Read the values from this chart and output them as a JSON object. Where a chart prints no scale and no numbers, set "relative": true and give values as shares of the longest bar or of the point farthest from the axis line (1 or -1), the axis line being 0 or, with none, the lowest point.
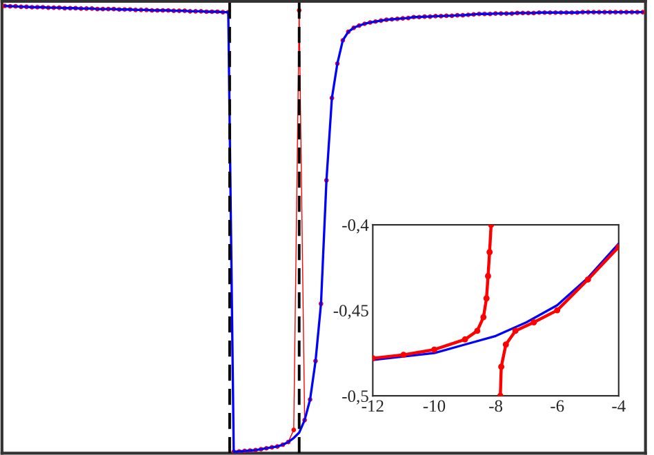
{
  "chart_data": [
    {
      "type": "line",
      "relative": true,
      "grid": false,
      "categories": [
        null,
        null,
        null,
        null,
        null,
        null,
        null,
        null,
        null,
        null,
        null,
        null,
        null,
        null,
        null,
        null,
        null,
        null,
        null,
        null,
        null,
        null,
        null,
        null,
        null,
        null,
        null,
        null,
        null,
        null,
        null,
        null,
        null,
        null,
        null,
        null,
        null,
        null,
        null,
        null,
        null,
        null,
        null,
        null,
        null,
        null,
        null,
        null,
        null,
        null,
        null,
        null,
        null,
        null,
        null,
        null,
        null,
        null,
        null,
        null,
        null,
        null,
        null,
        null,
        null,
        null,
        null,
        null,
        null,
        null,
        null,
        null,
        null,
        null,
        null,
        null,
        null,
        null,
        null,
        null,
        null,
        null,
        null,
        null,
        null,
        null,
        null,
        null,
        null,
        null,
        null,
        null,
        null,
        null,
        null,
        null,
        null,
        null,
        null,
        null,
        null,
        null,
        null,
        null,
        null,
        null,
        null,
        null,
        null,
        null,
        null,
        null,
        null,
        null,
        null,
        null,
        null,
        null
      ],
      "series": [
        {
          "color": "#0000ff",
          "values": [
            1.0,
            0.999,
            0.999,
            0.998,
            0.998,
            0.997,
            0.997,
            0.997,
            0.996,
            0.996,
            0.996,
            0.995,
            0.995,
            0.995,
            0.994,
            0.994,
            0.994,
            0.993,
            0.993,
            0.993,
            0.993,
            0.992,
            0.992,
            0.992,
            0.991,
            0.991,
            0.991,
            0.99,
            0.99,
            0.99,
            0.99,
            0.989,
            0.989,
            0.989,
            0.988,
            0.988,
            0.988,
            0.987,
            0.987,
            0.987,
            0.986,
            0.986,
            0.003,
            0.004,
            0.005,
            0.006,
            0.007,
            0.009,
            0.011,
            0.013,
            0.015,
            0.019,
            0.025,
            0.034,
            0.046,
            0.074,
            0.12,
            0.206,
            0.334,
            0.61,
            0.794,
            0.871,
            0.923,
            0.942,
            0.951,
            0.956,
            0.96,
            0.963,
            0.965,
            0.967,
            0.969,
            0.97,
            0.971,
            0.972,
            0.973,
            0.975,
            0.975,
            0.976,
            0.976,
            0.977,
            0.977,
            0.978,
            0.978,
            0.979,
            0.979,
            0.98,
            0.981,
            0.982,
            0.982,
            0.982,
            0.983,
            0.983,
            0.983,
            0.983,
            0.984,
            0.984,
            0.984,
            0.984,
            0.985,
            0.985,
            0.985,
            0.985,
            0.985,
            0.985,
            0.985,
            0.985,
            0.986,
            0.986,
            0.986,
            0.986,
            0.986,
            0.986,
            0.986,
            0.986,
            0.986,
            0.986,
            0.986,
            0.986
          ]
        },
        {
          "color": "#ff0000",
          "marker": "circle",
          "values": [
            1.0,
            0.999,
            0.999,
            0.998,
            0.998,
            0.997,
            0.997,
            0.997,
            0.996,
            0.996,
            0.996,
            0.995,
            0.995,
            0.995,
            0.994,
            0.994,
            0.994,
            0.993,
            0.993,
            0.993,
            0.993,
            0.992,
            0.992,
            0.992,
            0.991,
            0.991,
            0.991,
            0.99,
            0.99,
            0.99,
            0.99,
            0.989,
            0.989,
            0.989,
            0.988,
            0.988,
            0.988,
            0.987,
            0.987,
            0.987,
            0.986,
            0.986,
            0.003,
            0.004,
            0.005,
            0.006,
            0.007,
            0.009,
            0.011,
            0.013,
            0.015,
            0.019,
            0.025,
            0.052,
            0.99,
            0.074,
            0.12,
            0.206,
            0.334,
            0.61,
            0.794,
            0.871,
            0.923,
            0.942,
            0.951,
            0.956,
            0.96,
            0.963,
            0.965,
            0.967,
            0.969,
            0.97,
            0.971,
            0.972,
            0.973,
            0.975,
            0.975,
            0.976,
            0.976,
            0.977,
            0.977,
            0.978,
            0.978,
            0.979,
            0.979,
            0.98,
            0.981,
            0.982,
            0.982,
            0.982,
            0.983,
            0.983,
            0.983,
            0.983,
            0.984,
            0.984,
            0.984,
            0.984,
            0.985,
            0.985,
            0.985,
            0.985,
            0.985,
            0.985,
            0.985,
            0.985,
            0.986,
            0.986,
            0.986,
            0.986,
            0.986,
            0.986,
            0.986,
            0.986,
            0.986,
            0.986,
            0.986,
            0.986
          ]
        }
      ]
    },
    {
      "type": "line",
      "grid": false,
      "xlim": [
        -12,
        -4
      ],
      "xticks": [
        -12,
        -10,
        -8,
        -6,
        -4
      ],
      "ylim": [
        -0.5,
        -0.4
      ],
      "yticks": [
        {
          "value": -0.5,
          "label": "-0,5"
        },
        {
          "value": -0.45,
          "label": "-0,45"
        },
        {
          "value": -0.4,
          "label": "-0,4"
        }
      ],
      "series": [
        {
          "color": "#0000ff",
          "x": [
            -12,
            -11,
            -10,
            -9,
            -8,
            -7,
            -6,
            -5,
            -4
          ],
          "values": [
            -0.479,
            -0.477,
            -0.475,
            -0.47,
            -0.465,
            -0.457,
            -0.447,
            -0.431,
            -0.411
          ]
        },
        {
          "color": "#ff0000",
          "marker": "circle",
          "x": [
            -12,
            -11,
            -10,
            -9,
            -8.6,
            -8.4,
            -8.3,
            -8.25,
            -8.2,
            -8.15
          ],
          "values": [
            -0.478,
            -0.476,
            -0.473,
            -0.467,
            -0.462,
            -0.454,
            -0.443,
            -0.43,
            -0.416,
            -0.4
          ]
        },
        {
          "color": "#ff0000",
          "marker": "circle",
          "x": [
            -7.85,
            -7.82,
            -7.67,
            -7.36,
            -6.76,
            -6,
            -5,
            -4
          ],
          "values": [
            -0.5,
            -0.483,
            -0.47,
            -0.462,
            -0.457,
            -0.45,
            -0.432,
            -0.413
          ]
        }
      ]
    }
  ]
}
